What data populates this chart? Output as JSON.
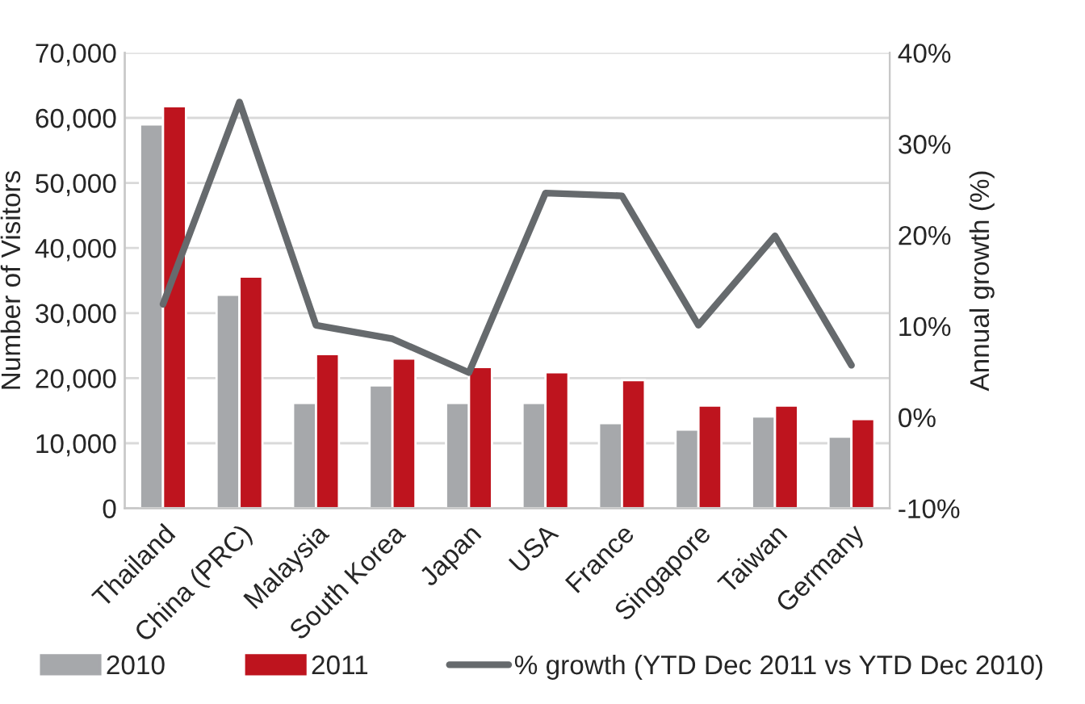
{
  "chart_data": {
    "type": "bar",
    "categories": [
      "Thailand",
      "China (PRC)",
      "Malaysia",
      "South Korea",
      "Japan",
      "USA",
      "France",
      "Singapore",
      "Taiwan",
      "Germany"
    ],
    "series": [
      {
        "name": "2010",
        "color": "#a6a8ab",
        "values": [
          59000,
          32800,
          16200,
          18900,
          16200,
          16200,
          13100,
          12100,
          14100,
          11000
        ]
      },
      {
        "name": "2011",
        "color": "#be141e",
        "values": [
          61800,
          35600,
          23700,
          23000,
          21700,
          20900,
          19700,
          15800,
          15800,
          13700
        ]
      },
      {
        "name": "% growth (YTD Dec 2011 vs YTD Dec 2010)",
        "type": "line",
        "axis": "y2",
        "color": "#666a6d",
        "values": [
          12.4,
          34.6,
          10.1,
          8.6,
          4.9,
          24.6,
          24.3,
          10.1,
          19.9,
          5.7
        ]
      }
    ],
    "ylabel": "Number of Visitors",
    "y2label": "Annual growth (%)",
    "ylim": [
      0,
      70000
    ],
    "yticks": [
      {
        "value": 0,
        "label": "0"
      },
      {
        "value": 10000,
        "label": "10,000"
      },
      {
        "value": 20000,
        "label": "20,000"
      },
      {
        "value": 30000,
        "label": "30,000"
      },
      {
        "value": 40000,
        "label": "40,000"
      },
      {
        "value": 50000,
        "label": "50,000"
      },
      {
        "value": 60000,
        "label": "60,000"
      },
      {
        "value": 70000,
        "label": "70,000"
      }
    ],
    "y2lim": [
      -10,
      40
    ],
    "y2ticks": [
      {
        "value": -10,
        "label": "-10%"
      },
      {
        "value": 0,
        "label": "0%"
      },
      {
        "value": 10,
        "label": "10%"
      },
      {
        "value": 20,
        "label": "20%"
      },
      {
        "value": 30,
        "label": "30%"
      },
      {
        "value": 40,
        "label": "40%"
      }
    ],
    "grid": "y",
    "legend": "bottom"
  }
}
